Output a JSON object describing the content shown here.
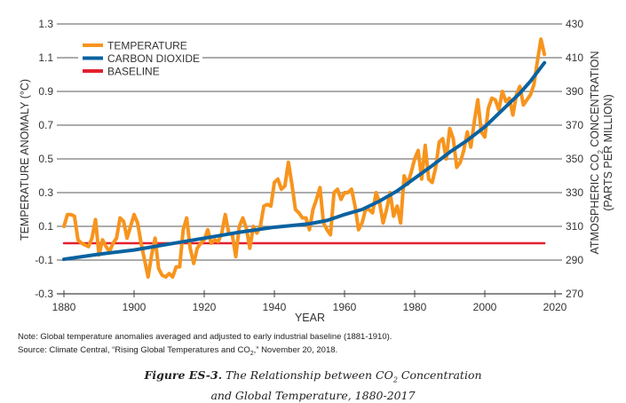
{
  "chart_data": {
    "type": "line",
    "title": "",
    "xlabel": "YEAR",
    "ylabel_left": "TEMPERATURE ANOMALY (°C)",
    "ylabel_right_line1": "ATMOSPHERIC CO2 CONCENTRATION",
    "ylabel_right_line2": "(PARTS PER MILLION)",
    "xlim": [
      1880,
      2020
    ],
    "ylim_left": [
      -0.3,
      1.3
    ],
    "ylim_right": [
      270,
      430
    ],
    "x_ticks": [
      "1880",
      "1900",
      "1920",
      "1940",
      "1960",
      "1980",
      "2000",
      "2020"
    ],
    "y_ticks_left": [
      "1.3",
      "1.1",
      "0.9",
      "0.7",
      "0.5",
      "0.3",
      "0.1",
      "-0.1",
      "-0.3"
    ],
    "y_ticks_right": [
      "430",
      "410",
      "390",
      "370",
      "350",
      "330",
      "310",
      "290",
      "270"
    ],
    "grid": true,
    "legend_position": "top-left",
    "legend": [
      "TEMPERATURE",
      "CARBON DIOXIDE",
      "BASELINE"
    ],
    "colors": {
      "temperature": "#f7941d",
      "co2": "#0a62a0",
      "baseline": "#e3202e",
      "grid": "#7a7a7a"
    },
    "series": [
      {
        "name": "TEMPERATURE",
        "axis": "left",
        "x_start": 1880,
        "values": [
          0.1,
          0.17,
          0.17,
          0.16,
          0.02,
          0.0,
          -0.01,
          -0.02,
          0.03,
          0.14,
          -0.07,
          0.02,
          -0.02,
          -0.05,
          0.0,
          0.03,
          0.15,
          0.13,
          0.03,
          0.1,
          0.17,
          0.12,
          0.0,
          -0.1,
          -0.2,
          -0.07,
          0.03,
          -0.15,
          -0.19,
          -0.2,
          -0.18,
          -0.2,
          -0.14,
          -0.14,
          0.08,
          0.15,
          -0.03,
          -0.12,
          -0.03,
          0.0,
          0.02,
          0.08,
          0.0,
          0.02,
          0.01,
          0.06,
          0.17,
          0.06,
          0.05,
          -0.08,
          0.1,
          0.15,
          0.09,
          -0.03,
          0.1,
          0.06,
          0.1,
          0.22,
          0.23,
          0.22,
          0.36,
          0.38,
          0.32,
          0.34,
          0.48,
          0.35,
          0.2,
          0.18,
          0.15,
          0.15,
          0.08,
          0.2,
          0.26,
          0.33,
          0.12,
          0.08,
          0.05,
          0.3,
          0.32,
          0.26,
          0.3,
          0.3,
          0.32,
          0.22,
          0.08,
          0.12,
          0.2,
          0.2,
          0.18,
          0.3,
          0.24,
          0.12,
          0.2,
          0.3,
          0.16,
          0.22,
          0.12,
          0.4,
          0.35,
          0.42,
          0.5,
          0.55,
          0.38,
          0.58,
          0.38,
          0.36,
          0.45,
          0.6,
          0.62,
          0.5,
          0.68,
          0.62,
          0.45,
          0.48,
          0.55,
          0.66,
          0.57,
          0.72,
          0.85,
          0.66,
          0.63,
          0.8,
          0.86,
          0.85,
          0.79,
          0.9,
          0.84,
          0.86,
          0.76,
          0.88,
          0.93,
          0.82,
          0.85,
          0.88,
          0.94,
          1.08,
          1.21,
          1.12
        ]
      },
      {
        "name": "CARBON DIOXIDE",
        "axis": "right",
        "x": [
          1880,
          1890,
          1900,
          1910,
          1920,
          1930,
          1940,
          1950,
          1955,
          1960,
          1965,
          1970,
          1975,
          1980,
          1985,
          1990,
          1995,
          2000,
          2005,
          2010,
          2013,
          2017
        ],
        "values": [
          290.5,
          293.5,
          296,
          299.5,
          303,
          306.5,
          309.5,
          311.5,
          313.5,
          317,
          320,
          325,
          331,
          338.5,
          346,
          354,
          361,
          369,
          379,
          389,
          396,
          407
        ]
      },
      {
        "name": "BASELINE",
        "axis": "left",
        "x": [
          1880,
          2017
        ],
        "values": [
          0.0,
          0.0
        ]
      }
    ]
  },
  "notes": {
    "note": "Note: Global temperature anomalies averaged and adjusted to early industrial baseline (1881-1910).",
    "source_prefix": "Source: Climate Central, “Rising Global Temperatures and CO",
    "source_sub": "2",
    "source_suffix": ",” November 20, 2018."
  },
  "caption": {
    "label": "Figure ES-3.",
    "line1_a": " The Relationship between CO",
    "line1_sub": "2",
    "line1_b": " Concentration",
    "line2": "and Global Temperature, 1880-2017"
  }
}
